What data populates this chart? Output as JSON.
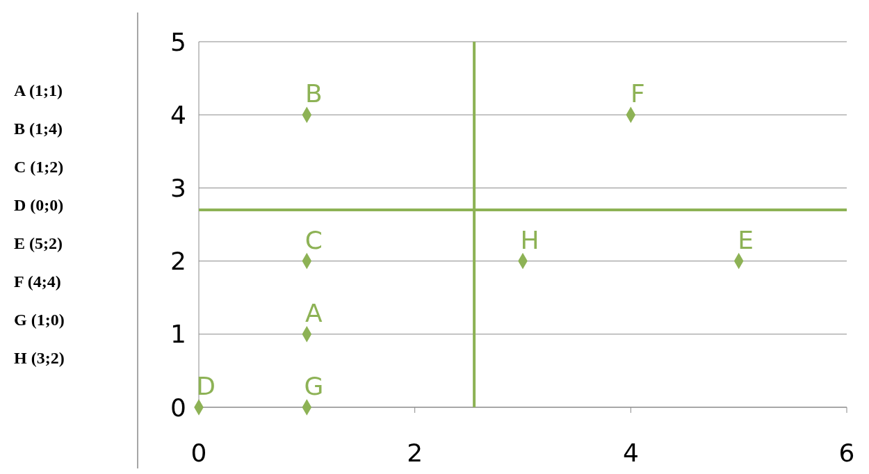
{
  "chart_data": {
    "type": "scatter",
    "x": [
      1,
      1,
      1,
      0,
      5,
      4,
      1,
      3
    ],
    "series": [
      {
        "color": "#8db255",
        "values": [
          1,
          4,
          2,
          0,
          2,
          4,
          0,
          2
        ]
      }
    ],
    "xlim": [
      0,
      6
    ],
    "ylim": [
      0,
      5
    ],
    "xticks": [
      0,
      2,
      4,
      6
    ],
    "yticks": [
      0,
      1,
      2,
      3,
      4,
      5
    ],
    "grid": "y",
    "marker": "diamond",
    "ref_lines": [
      {
        "axis": "x",
        "value": 2.55,
        "color": "#8db255"
      },
      {
        "axis": "y",
        "value": 2.7,
        "color": "#8db255"
      }
    ],
    "annotations": [
      "A (1;1)",
      "B (1;4)",
      "C (1;2)",
      "D (0;0)",
      "E (5;2)",
      "F (4;4)",
      "G (1;0)",
      "H (3;2)",
      {
        "text": "A",
        "x": 1,
        "y": 1
      },
      {
        "text": "B",
        "x": 1,
        "y": 4
      },
      {
        "text": "C",
        "x": 1,
        "y": 2
      },
      {
        "text": "D",
        "x": 0,
        "y": 0
      },
      {
        "text": "E",
        "x": 5,
        "y": 2
      },
      {
        "text": "F",
        "x": 4,
        "y": 4
      },
      {
        "text": "G",
        "x": 1,
        "y": 0
      },
      {
        "text": "H",
        "x": 3,
        "y": 2
      }
    ]
  }
}
